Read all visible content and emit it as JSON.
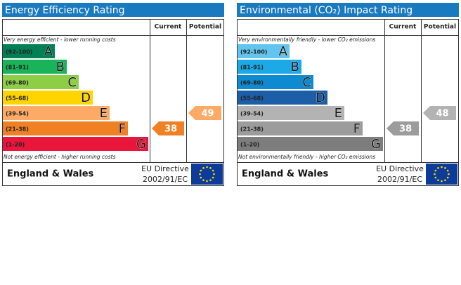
{
  "panels": [
    {
      "title": "Energy Efficiency Rating",
      "headers": {
        "current": "Current",
        "potential": "Potential"
      },
      "top_note": "Very energy efficient - lower running costs",
      "bands": [
        {
          "range": "(92-100)",
          "letter": "A",
          "color": "#008054"
        },
        {
          "range": "(81-91)",
          "letter": "B",
          "color": "#19b459"
        },
        {
          "range": "(69-80)",
          "letter": "C",
          "color": "#8dce46"
        },
        {
          "range": "(55-68)",
          "letter": "D",
          "color": "#ffd500"
        },
        {
          "range": "(39-54)",
          "letter": "E",
          "color": "#fcaa65"
        },
        {
          "range": "(21-38)",
          "letter": "F",
          "color": "#ef8023"
        },
        {
          "range": "(1-20)",
          "letter": "G",
          "color": "#e9153b"
        }
      ],
      "bottom_note": "Not energy efficient - higher running costs",
      "region": "England & Wales",
      "directive": [
        "EU Directive",
        "2002/91/EC"
      ],
      "current": 38,
      "potential": 49
    },
    {
      "title": "Environmental (CO₂) Impact Rating",
      "headers": {
        "current": "Current",
        "potential": "Potential"
      },
      "top_note": "Very environmentally friendly - lower CO₂ emissions",
      "bands": [
        {
          "range": "(92-100)",
          "letter": "A",
          "color": "#63c5ef"
        },
        {
          "range": "(81-91)",
          "letter": "B",
          "color": "#1ca9e8"
        },
        {
          "range": "(69-80)",
          "letter": "C",
          "color": "#0e8bd0"
        },
        {
          "range": "(55-68)",
          "letter": "D",
          "color": "#1d5ea8"
        },
        {
          "range": "(39-54)",
          "letter": "E",
          "color": "#b3b3b3"
        },
        {
          "range": "(21-38)",
          "letter": "F",
          "color": "#9c9c9c"
        },
        {
          "range": "(1-20)",
          "letter": "G",
          "color": "#7d7d7d"
        }
      ],
      "bottom_note": "Not environmentally friendly - higher CO₂ emissions",
      "region": "England & Wales",
      "directive": [
        "EU Directive",
        "2002/91/EC"
      ],
      "current": 38,
      "potential": 48
    }
  ]
}
